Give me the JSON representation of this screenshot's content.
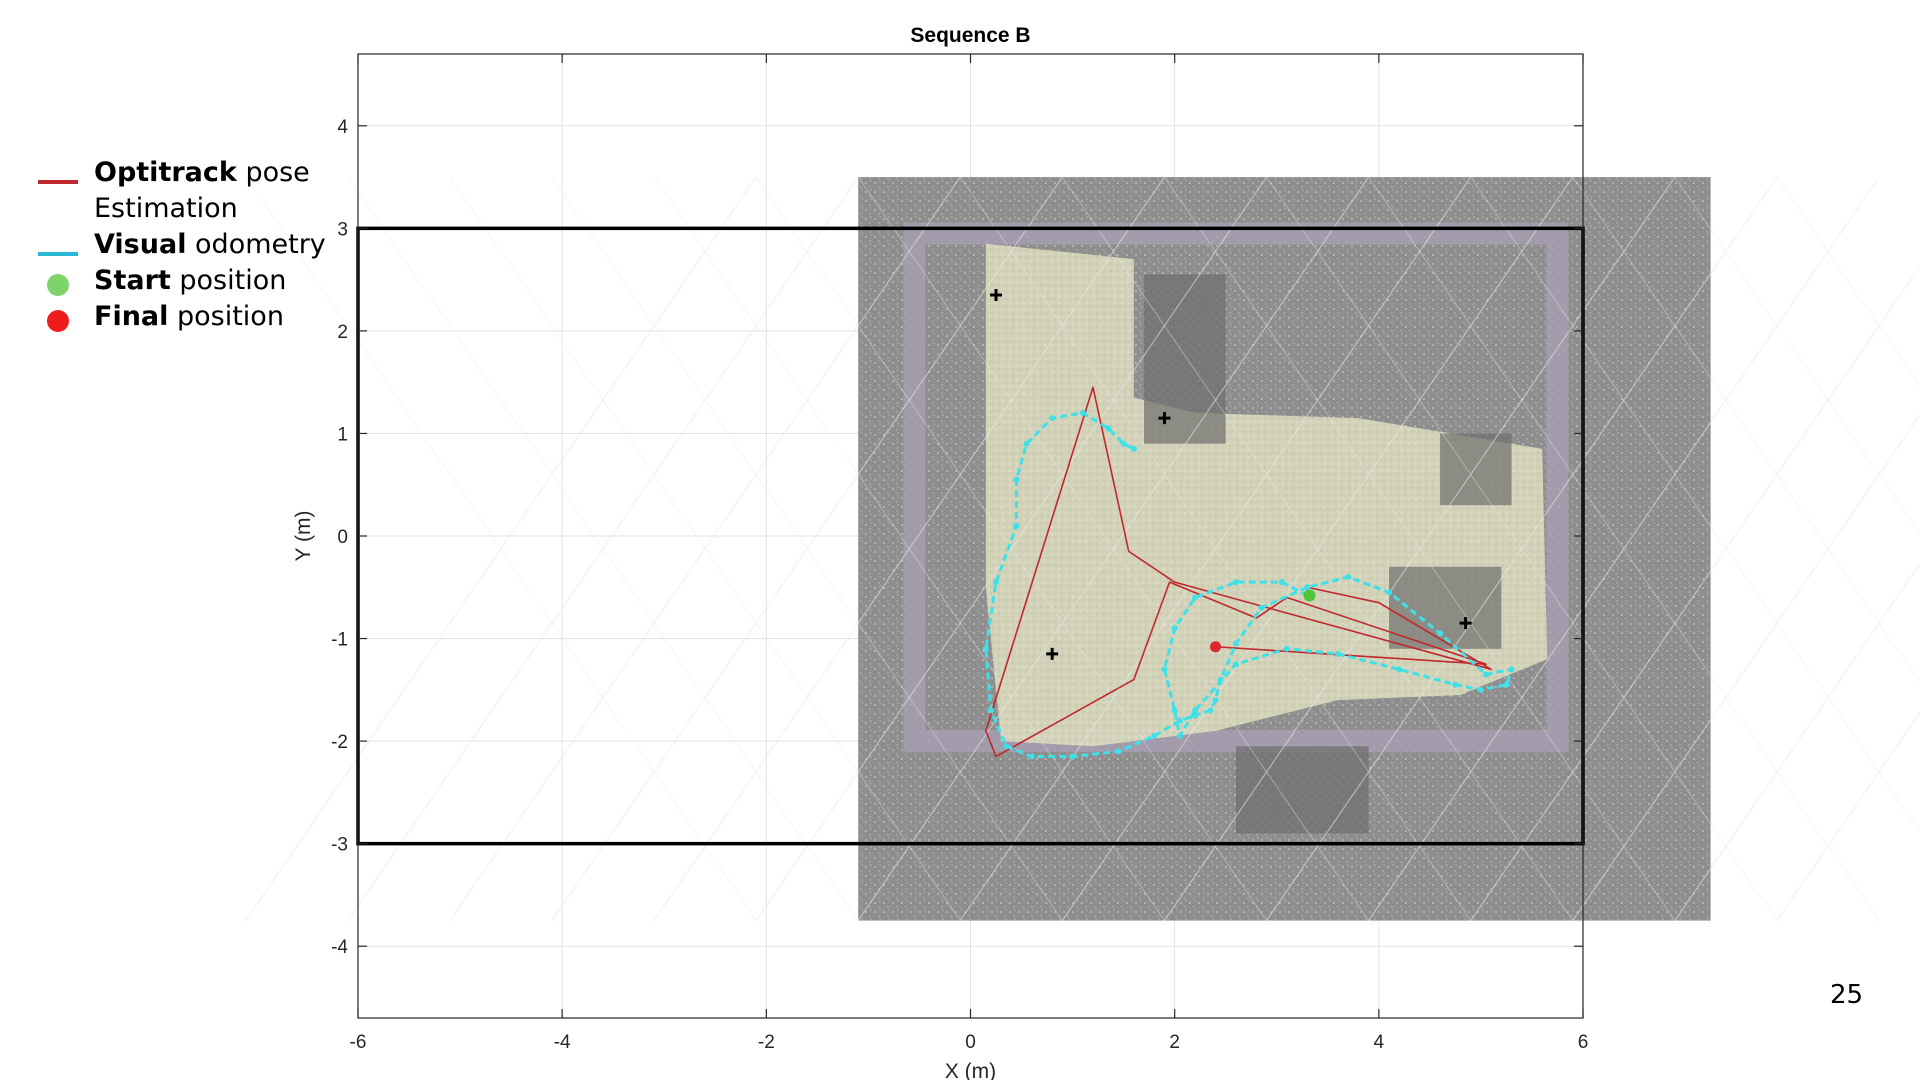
{
  "slide": {
    "page_number": "25"
  },
  "legend": {
    "items": [
      {
        "bold": "Optitrack",
        "rest": " pose",
        "continuation": "Estimation",
        "marker": "line",
        "color": "#c0282d"
      },
      {
        "bold": "Visual",
        "rest": " odometry",
        "marker": "line",
        "color": "#2ab7d6"
      },
      {
        "bold": "Start",
        "rest": " position",
        "marker": "dot",
        "color": "#7fd36b"
      },
      {
        "bold": "Final",
        "rest": " position",
        "marker": "dot",
        "color": "#ee1c1c"
      }
    ]
  },
  "chart_data": {
    "type": "line",
    "title": "Sequence B",
    "xlabel": "X (m)",
    "ylabel": "Y (m)",
    "xlim": [
      -6,
      6
    ],
    "ylim": [
      -4.7,
      4.7
    ],
    "xticks": [
      -6,
      -4,
      -2,
      0,
      2,
      4,
      6
    ],
    "yticks": [
      -4,
      -3,
      -2,
      -1,
      0,
      1,
      2,
      3,
      4
    ],
    "grid": true,
    "background_map": {
      "extent_x": [
        -1.1,
        7.25
      ],
      "extent_y": [
        -3.75,
        3.5
      ],
      "description_color": "#8c8c8c"
    },
    "boundary_rect": {
      "x": [
        -6,
        6
      ],
      "y": [
        -3,
        3
      ]
    },
    "landmarks": [
      {
        "x": 0.25,
        "y": 2.35
      },
      {
        "x": 1.9,
        "y": 1.15
      },
      {
        "x": 0.8,
        "y": -1.15
      },
      {
        "x": 4.85,
        "y": -0.85
      }
    ],
    "series": [
      {
        "name": "Optitrack pose Estimation",
        "color": "#c0282d",
        "x": [
          3.3,
          4.0,
          5.1,
          2.0,
          1.55,
          1.2,
          0.15,
          0.25,
          1.6,
          1.95,
          2.8,
          3.1,
          5.05,
          2.4
        ],
        "y": [
          -0.5,
          -0.65,
          -1.3,
          -0.45,
          -0.15,
          1.45,
          -1.9,
          -2.15,
          -1.4,
          -0.45,
          -0.8,
          -0.6,
          -1.25,
          -1.08
        ]
      },
      {
        "name": "Visual odometry",
        "color": "#3fe0e8",
        "x": [
          3.3,
          3.05,
          2.6,
          2.2,
          2.0,
          1.9,
          2.0,
          2.05,
          2.2,
          2.6,
          3.1,
          3.6,
          4.2,
          4.75,
          5.0,
          5.25,
          5.3,
          5.05,
          4.6,
          4.1,
          3.7,
          3.3,
          2.85,
          2.6,
          2.45,
          2.4,
          2.35,
          2.2,
          2.05,
          1.8,
          1.45,
          1.0,
          0.6,
          0.35,
          0.2,
          0.15,
          0.25,
          0.45,
          0.45,
          0.55,
          0.8,
          1.1,
          1.35,
          1.5,
          1.6
        ],
        "y": [
          -0.58,
          -0.45,
          -0.45,
          -0.6,
          -0.9,
          -1.3,
          -1.7,
          -1.95,
          -1.7,
          -1.25,
          -1.1,
          -1.15,
          -1.3,
          -1.45,
          -1.5,
          -1.45,
          -1.3,
          -1.35,
          -0.95,
          -0.55,
          -0.4,
          -0.5,
          -0.7,
          -1.05,
          -1.4,
          -1.6,
          -1.7,
          -1.75,
          -1.8,
          -1.95,
          -2.1,
          -2.15,
          -2.15,
          -2.05,
          -1.7,
          -1.1,
          -0.45,
          0.1,
          0.55,
          0.9,
          1.15,
          1.2,
          1.05,
          0.9,
          0.85
        ]
      }
    ],
    "start_position": {
      "x": 3.32,
      "y": -0.58
    },
    "final_position": {
      "x": 2.4,
      "y": -1.08
    }
  }
}
